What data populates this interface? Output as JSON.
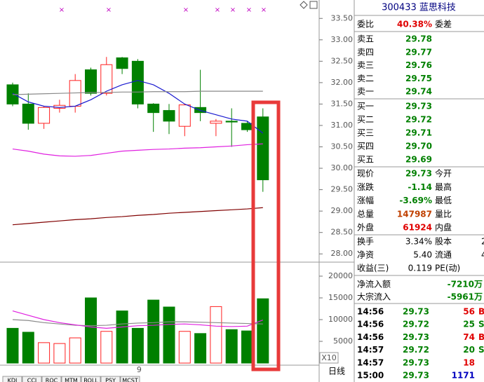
{
  "chart_data": [
    {
      "type": "candlestick",
      "categories": [
        null,
        null,
        null,
        null,
        null,
        null,
        null,
        null,
        "9",
        null,
        null,
        null,
        null,
        null,
        null,
        null,
        null
      ],
      "open": [
        31.95,
        31.5,
        31.05,
        31.4,
        31.45,
        32.3,
        31.75,
        32.58,
        32.5,
        31.5,
        31.35,
        30.98,
        31.42,
        31.05,
        31.1,
        31.05,
        31.2
      ],
      "high": [
        32.0,
        31.75,
        31.45,
        31.6,
        32.2,
        32.35,
        32.6,
        32.6,
        32.55,
        31.52,
        31.5,
        31.5,
        32.3,
        31.15,
        31.4,
        31.1,
        31.4
      ],
      "low": [
        31.45,
        30.9,
        30.92,
        31.3,
        31.3,
        31.7,
        31.7,
        32.2,
        31.4,
        30.85,
        30.8,
        30.75,
        31.1,
        30.75,
        30.5,
        30.85,
        29.45
      ],
      "close": [
        31.5,
        31.05,
        31.42,
        31.47,
        32.05,
        31.75,
        32.42,
        32.33,
        31.5,
        31.3,
        31.1,
        31.48,
        31.3,
        31.1,
        31.08,
        30.9,
        29.73
      ],
      "up_color": "#ff2020",
      "down_color": "#008000",
      "lines": [
        {
          "color": "#1a1ad0",
          "values": [
            31.75,
            31.55,
            31.45,
            31.42,
            31.45,
            31.6,
            31.8,
            31.95,
            32.05,
            31.95,
            31.75,
            31.5,
            31.35,
            31.25,
            31.15,
            31.1,
            30.82
          ]
        },
        {
          "color": "#8a8a8a",
          "values": [
            31.72,
            31.73,
            31.74,
            31.75,
            31.76,
            31.77,
            31.77,
            31.78,
            31.78,
            31.79,
            31.79,
            31.79,
            31.8,
            31.8,
            31.8,
            31.8,
            31.8
          ]
        },
        {
          "color": "#e020e0",
          "values": [
            30.45,
            30.4,
            30.33,
            30.29,
            30.28,
            30.3,
            30.35,
            30.4,
            30.42,
            30.44,
            30.45,
            30.47,
            30.48,
            30.5,
            30.52,
            30.55,
            30.57
          ]
        },
        {
          "color": "#800000",
          "values": [
            28.68,
            28.71,
            28.74,
            28.77,
            28.8,
            28.82,
            28.85,
            28.87,
            28.9,
            28.92,
            28.95,
            28.97,
            28.99,
            29.01,
            29.03,
            29.05,
            29.08
          ]
        }
      ],
      "ylim": [
        27.84,
        33.93
      ],
      "yticks": [
        {
          "value": 28,
          "label": "28.00"
        },
        {
          "value": 28.5,
          "label": "28.50"
        },
        {
          "value": 29,
          "label": "29.00"
        },
        {
          "value": 29.5,
          "label": "29.50"
        },
        {
          "value": 30,
          "label": "30.00"
        },
        {
          "value": 30.5,
          "label": "30.50"
        },
        {
          "value": 31,
          "label": "31.00"
        },
        {
          "value": 31.5,
          "label": "31.50"
        },
        {
          "value": 32,
          "label": "32.00"
        },
        {
          "value": 32.5,
          "label": "32.50"
        },
        {
          "value": 33,
          "label": "33.00"
        },
        {
          "value": 33.5,
          "label": "33.50"
        }
      ]
    },
    {
      "type": "bar",
      "values": [
        8000,
        7100,
        4700,
        4500,
        5800,
        15000,
        7300,
        12000,
        8000,
        14500,
        12900,
        7300,
        6800,
        13000,
        7700,
        7400,
        14800
      ],
      "colors": [
        "#008000",
        "#008000",
        "#ff2020",
        "#ff2020",
        "#ff2020",
        "#008000",
        "#ff2020",
        "#008000",
        "#008000",
        "#008000",
        "#008000",
        "#ff2020",
        "#008000",
        "#ff2020",
        "#008000",
        "#008000",
        "#008000"
      ],
      "lines": [
        {
          "color": "#8a8a8a",
          "values": [
            10000,
            9800,
            9300,
            9000,
            8700,
            8600,
            8700,
            9000,
            9200,
            9300,
            9500,
            9500,
            9400,
            9300,
            9200,
            9100,
            9000
          ]
        },
        {
          "color": "#e020e0",
          "values": [
            12000,
            11000,
            10000,
            9300,
            8800,
            8300,
            8000,
            8300,
            8600,
            8700,
            8900,
            9000,
            8800,
            8500,
            8400,
            8500,
            9900
          ]
        }
      ],
      "ylim": [
        0,
        22900
      ],
      "yticks": [
        5000,
        10000,
        15000,
        20000
      ]
    }
  ],
  "quote": {
    "title": "300433 蓝思科技",
    "ratio": {
      "label": "委比",
      "value": "40.38%",
      "label2": "委差",
      "color": "#e00000"
    },
    "sell": [
      {
        "label": "卖五",
        "price": "29.78"
      },
      {
        "label": "卖四",
        "price": "29.77"
      },
      {
        "label": "卖三",
        "price": "29.76"
      },
      {
        "label": "卖二",
        "price": "29.75"
      },
      {
        "label": "卖一",
        "price": "29.74"
      }
    ],
    "buy": [
      {
        "label": "买一",
        "price": "29.73"
      },
      {
        "label": "买二",
        "price": "29.72"
      },
      {
        "label": "买三",
        "price": "29.71"
      },
      {
        "label": "买四",
        "price": "29.70"
      },
      {
        "label": "买五",
        "price": "29.69"
      }
    ],
    "stats": [
      {
        "label": "现价",
        "value": "29.73",
        "label2": "今开",
        "color": "#008000"
      },
      {
        "label": "涨跌",
        "value": "-1.14",
        "label2": "最高",
        "color": "#008000"
      },
      {
        "label": "涨幅",
        "value": "-3.69%",
        "label2": "最低",
        "color": "#008000"
      },
      {
        "label": "总量",
        "value": "147987",
        "label2": "量比",
        "color": "#c04000"
      },
      {
        "label": "外盘",
        "value": "61924",
        "label2": "内盘",
        "color": "#e00000"
      }
    ],
    "stats2": [
      {
        "label": "换手",
        "value": "3.34%",
        "label2": "股本",
        "extra": "2"
      },
      {
        "label": "净资",
        "value": "5.40",
        "label2": "流通",
        "extra": "4"
      },
      {
        "label": "收益(三)",
        "value": "0.119",
        "label2": "PE(动)"
      }
    ],
    "flows": [
      {
        "label": "净流入额",
        "value": "-7210万"
      },
      {
        "label": "大宗流入",
        "value": "-5961万"
      }
    ],
    "trades": [
      {
        "time": "14:56",
        "price": "29.73",
        "vol": "56",
        "side": "B",
        "color": "#e00000"
      },
      {
        "time": "14:56",
        "price": "29.72",
        "vol": "25",
        "side": "S",
        "color": "#008000"
      },
      {
        "time": "14:56",
        "price": "29.73",
        "vol": "74",
        "side": "B",
        "color": "#e00000"
      },
      {
        "time": "14:57",
        "price": "29.72",
        "vol": "20",
        "side": "S",
        "color": "#008000"
      },
      {
        "time": "14:57",
        "price": "29.73",
        "vol": "18",
        "color": "#e00000"
      },
      {
        "time": "15:00",
        "price": "29.73",
        "vol": "1171",
        "color": "#0000c0"
      }
    ]
  },
  "footer": {
    "zoom": "X10",
    "period": "日线",
    "tabs": [
      "KDJ",
      "CCI",
      "ROC",
      "MTM",
      "BOLL",
      "PSY",
      "MCST"
    ]
  }
}
